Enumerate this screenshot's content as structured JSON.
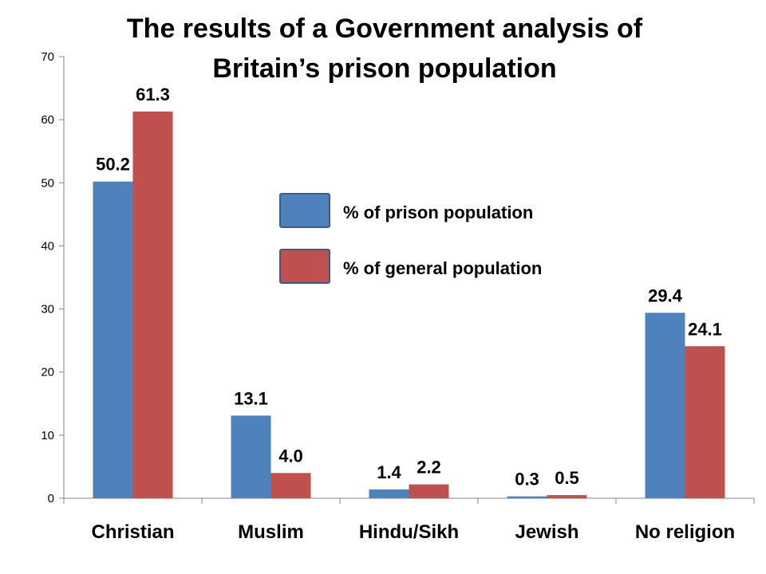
{
  "chart_data": {
    "type": "bar",
    "title_lines": [
      "The results of a Government analysis of",
      "Britain’s prison population"
    ],
    "xlabel": "",
    "ylabel": "",
    "ylim": [
      0,
      70
    ],
    "yticks": [
      "0",
      "10",
      "20",
      "30",
      "40",
      "50",
      "60",
      "70"
    ],
    "grid": false,
    "legend_position": "center",
    "categories": [
      "Christian",
      "Muslim",
      "Hindu/Sikh",
      "Jewish",
      "No religion"
    ],
    "series": [
      {
        "name": "% of prison population",
        "color": "#4F81BD",
        "values": [
          50.2,
          13.1,
          1.4,
          0.3,
          29.4
        ],
        "labels": [
          "50.2",
          "13.1",
          "1.4",
          "0.3",
          "29.4"
        ]
      },
      {
        "name": "% of general population",
        "color": "#C0504D",
        "values": [
          61.3,
          4.0,
          2.2,
          0.5,
          24.1
        ],
        "labels": [
          "61.3",
          "4.0",
          "2.2",
          "0.5",
          "24.1"
        ]
      }
    ]
  }
}
